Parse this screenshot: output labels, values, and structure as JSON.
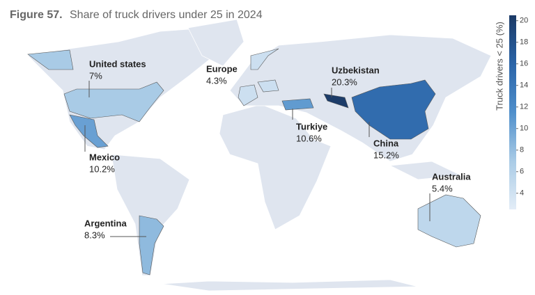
{
  "chart_data": {
    "type": "choropleth",
    "title_prefix": "Figure 57.",
    "title": "Share of truck drivers under 25 in 2024",
    "colorbar_label": "Truck drivers < 25 (%)",
    "clim": [
      2.5,
      20.5
    ],
    "cticks": [
      4,
      6,
      8,
      10,
      12,
      14,
      16,
      18,
      20
    ],
    "colors": [
      "#e3edf7",
      "#a9cbe6",
      "#4f8fcb",
      "#2a64a8",
      "#1b3a66"
    ],
    "categories": [
      "United states",
      "Europe",
      "Uzbekistan",
      "Turkiye",
      "China",
      "Mexico",
      "Australia",
      "Argentina"
    ],
    "values": [
      7,
      4.3,
      20.3,
      10.6,
      15.2,
      10.2,
      5.4,
      8.3
    ],
    "value_labels": [
      "7%",
      "4.3%",
      "20.3%",
      "10.6%",
      "15.2%",
      "10.2%",
      "5.4%",
      "8.3%"
    ]
  }
}
